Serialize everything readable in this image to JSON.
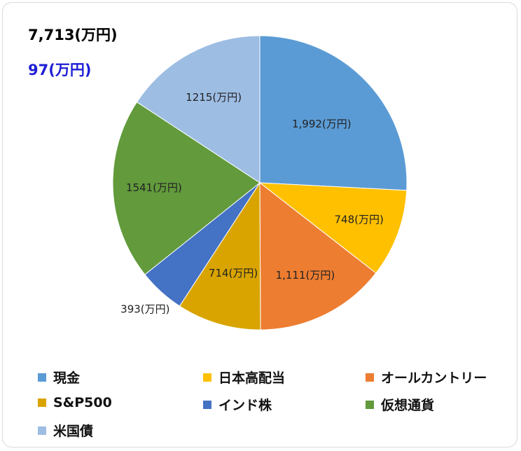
{
  "chart_data": {
    "type": "pie",
    "total_label": "7,713(万円)",
    "change_label": "97(万円)",
    "change_color": "#1f1fd6",
    "slices": [
      {
        "name": "現金",
        "value": 1992,
        "label": "1,992(万円)",
        "color": "#5b9bd5"
      },
      {
        "name": "日本高配当",
        "value": 748,
        "label": "748(万円)",
        "color": "#ffc000"
      },
      {
        "name": "オールカントリー",
        "value": 1111,
        "label": "1,111(万円)",
        "color": "#ed7d31"
      },
      {
        "name": "S&P500",
        "value": 714,
        "label": "714(万円)",
        "color": "#d9a400"
      },
      {
        "name": "インド株",
        "value": 393,
        "label": "393(万円)",
        "color": "#4472c4"
      },
      {
        "name": "仮想通貨",
        "value": 1541,
        "label": "1541(万円)",
        "color": "#629a3c"
      },
      {
        "name": "米国債",
        "value": 1215,
        "label": "1215(万円)",
        "color": "#9dbde3"
      }
    ],
    "legend_placement": "bottom"
  }
}
